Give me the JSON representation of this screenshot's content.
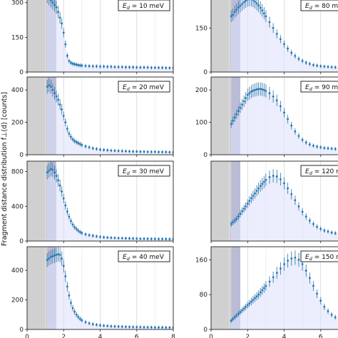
{
  "figure": {
    "ylabel": "Fragment distance distribution f⊥(d) [counts]"
  },
  "chart_data": [
    {
      "type": "scatter",
      "legend": "E_d = 10 meV",
      "xlim": [
        0,
        8
      ],
      "ylim": [
        0,
        330
      ],
      "yticks": [
        0,
        150,
        300
      ],
      "xticks": [
        0,
        2,
        4,
        6,
        8
      ],
      "x": [
        1.1,
        1.2,
        1.3,
        1.4,
        1.5,
        1.6,
        1.7,
        1.8,
        1.9,
        2.0,
        2.1,
        2.2,
        2.3,
        2.4,
        2.5,
        2.6,
        2.7,
        2.8,
        2.9,
        3.0,
        3.2,
        3.4,
        3.6,
        3.8,
        4.0,
        4.2,
        4.4,
        4.6,
        4.8,
        5.0,
        5.2,
        5.4,
        5.6,
        5.8,
        6.0,
        6.2,
        6.4,
        6.6,
        6.8,
        7.0,
        7.2,
        7.4,
        7.6,
        7.8,
        8.0
      ],
      "y": [
        330,
        320,
        310,
        300,
        290,
        280,
        260,
        235,
        210,
        170,
        120,
        70,
        48,
        40,
        36,
        34,
        32,
        30,
        29,
        28,
        27,
        26,
        25,
        25,
        24,
        24,
        23,
        23,
        22,
        22,
        22,
        21,
        21,
        21,
        20,
        20,
        20,
        20,
        19,
        19,
        19,
        19,
        18,
        18,
        18
      ]
    },
    {
      "type": "scatter",
      "legend": "E_d = 80 meV",
      "xlim": [
        0,
        8
      ],
      "ylim": [
        0,
        260
      ],
      "yticks": [
        0,
        150
      ],
      "xticks": [
        0,
        2,
        4,
        6,
        8
      ],
      "x": [
        1.1,
        1.2,
        1.3,
        1.4,
        1.5,
        1.6,
        1.7,
        1.8,
        1.9,
        2.0,
        2.1,
        2.2,
        2.3,
        2.4,
        2.5,
        2.6,
        2.7,
        2.8,
        2.9,
        3.0,
        3.2,
        3.4,
        3.6,
        3.8,
        4.0,
        4.2,
        4.4,
        4.6,
        4.8,
        5.0,
        5.2,
        5.4,
        5.6,
        5.8,
        6.0,
        6.2,
        6.4,
        6.6,
        6.8,
        7.0,
        7.2,
        7.4,
        7.6,
        7.8,
        8.0
      ],
      "y": [
        190,
        195,
        205,
        212,
        220,
        226,
        232,
        238,
        243,
        247,
        249,
        248,
        245,
        240,
        234,
        227,
        219,
        210,
        200,
        190,
        170,
        150,
        130,
        112,
        95,
        80,
        66,
        55,
        45,
        38,
        32,
        28,
        24,
        22,
        20,
        19,
        18,
        17,
        16,
        16,
        15,
        15,
        15,
        14,
        14
      ]
    },
    {
      "type": "scatter",
      "legend": "E_d = 20 meV",
      "xlim": [
        0,
        8
      ],
      "ylim": [
        0,
        480
      ],
      "yticks": [
        0,
        200,
        400
      ],
      "xticks": [
        0,
        2,
        4,
        6,
        8
      ],
      "x": [
        1.1,
        1.2,
        1.3,
        1.4,
        1.5,
        1.6,
        1.7,
        1.8,
        1.9,
        2.0,
        2.1,
        2.2,
        2.3,
        2.4,
        2.5,
        2.6,
        2.7,
        2.8,
        2.9,
        3.0,
        3.2,
        3.4,
        3.6,
        3.8,
        4.0,
        4.2,
        4.4,
        4.6,
        4.8,
        5.0,
        5.2,
        5.4,
        5.6,
        5.8,
        6.0,
        6.2,
        6.4,
        6.6,
        6.8,
        7.0,
        7.2,
        7.4,
        7.6,
        7.8,
        8.0
      ],
      "y": [
        420,
        430,
        420,
        400,
        380,
        360,
        340,
        310,
        280,
        240,
        200,
        160,
        130,
        110,
        95,
        85,
        78,
        72,
        66,
        60,
        52,
        46,
        40,
        36,
        32,
        30,
        28,
        26,
        25,
        24,
        23,
        22,
        21,
        20,
        20,
        19,
        19,
        18,
        18,
        18,
        17,
        17,
        17,
        16,
        16
      ]
    },
    {
      "type": "scatter",
      "legend": "E_d = 90 meV",
      "xlim": [
        0,
        8
      ],
      "ylim": [
        0,
        240
      ],
      "yticks": [
        0,
        100,
        200
      ],
      "xticks": [
        0,
        2,
        4,
        6,
        8
      ],
      "x": [
        1.1,
        1.2,
        1.3,
        1.4,
        1.5,
        1.6,
        1.7,
        1.8,
        1.9,
        2.0,
        2.1,
        2.2,
        2.3,
        2.4,
        2.5,
        2.6,
        2.7,
        2.8,
        2.9,
        3.0,
        3.2,
        3.4,
        3.6,
        3.8,
        4.0,
        4.2,
        4.4,
        4.6,
        4.8,
        5.0,
        5.2,
        5.4,
        5.6,
        5.8,
        6.0,
        6.2,
        6.4,
        6.6,
        6.8,
        7.0,
        7.2,
        7.4,
        7.6,
        7.8,
        8.0
      ],
      "y": [
        95,
        105,
        115,
        125,
        135,
        145,
        155,
        165,
        175,
        185,
        190,
        195,
        198,
        200,
        202,
        203,
        203,
        202,
        200,
        197,
        190,
        180,
        168,
        150,
        130,
        110,
        90,
        72,
        58,
        46,
        38,
        32,
        28,
        25,
        23,
        21,
        20,
        19,
        18,
        17,
        17,
        16,
        16,
        15,
        15
      ]
    },
    {
      "type": "scatter",
      "legend": "E_d = 30 meV",
      "xlim": [
        0,
        8
      ],
      "ylim": [
        0,
        920
      ],
      "yticks": [
        0,
        400,
        800
      ],
      "xticks": [
        0,
        2,
        4,
        6,
        8
      ],
      "x": [
        1.1,
        1.2,
        1.3,
        1.4,
        1.5,
        1.6,
        1.7,
        1.8,
        1.9,
        2.0,
        2.1,
        2.2,
        2.3,
        2.4,
        2.5,
        2.6,
        2.7,
        2.8,
        2.9,
        3.0,
        3.2,
        3.4,
        3.6,
        3.8,
        4.0,
        4.2,
        4.4,
        4.6,
        4.8,
        5.0,
        5.2,
        5.4,
        5.6,
        5.8,
        6.0,
        6.2,
        6.4,
        6.6,
        6.8,
        7.0,
        7.2,
        7.4,
        7.6,
        7.8,
        8.0
      ],
      "y": [
        790,
        810,
        830,
        820,
        790,
        750,
        700,
        640,
        570,
        490,
        410,
        340,
        280,
        230,
        190,
        160,
        140,
        120,
        105,
        92,
        78,
        68,
        60,
        54,
        48,
        44,
        41,
        38,
        36,
        34,
        33,
        32,
        30,
        29,
        28,
        27,
        27,
        26,
        25,
        25,
        24,
        24,
        23,
        23,
        22
      ]
    },
    {
      "type": "scatter",
      "legend": "E_d = 120 meV",
      "xlim": [
        0,
        8
      ],
      "ylim": [
        0,
        235
      ],
      "yticks": [],
      "xticks": [
        0,
        2,
        4,
        6,
        8
      ],
      "x": [
        1.1,
        1.2,
        1.3,
        1.4,
        1.5,
        1.6,
        1.7,
        1.8,
        1.9,
        2.0,
        2.1,
        2.2,
        2.3,
        2.4,
        2.5,
        2.6,
        2.7,
        2.8,
        2.9,
        3.0,
        3.2,
        3.4,
        3.6,
        3.8,
        4.0,
        4.2,
        4.4,
        4.6,
        4.8,
        5.0,
        5.2,
        5.4,
        5.6,
        5.8,
        6.0,
        6.2,
        6.4,
        6.6,
        6.8,
        7.0,
        7.2,
        7.4,
        7.6,
        7.8,
        8.0
      ],
      "y": [
        50,
        55,
        60,
        65,
        72,
        80,
        88,
        95,
        102,
        110,
        118,
        126,
        133,
        140,
        148,
        155,
        162,
        168,
        174,
        180,
        188,
        192,
        190,
        182,
        170,
        155,
        138,
        120,
        102,
        86,
        72,
        60,
        50,
        42,
        36,
        31,
        28,
        25,
        23,
        22,
        21,
        20,
        19,
        19,
        18
      ]
    },
    {
      "type": "scatter",
      "legend": "E_d = 40 meV",
      "xlim": [
        0,
        8
      ],
      "ylim": [
        0,
        560
      ],
      "yticks": [
        0,
        200,
        400
      ],
      "xticks": [
        0,
        2,
        4,
        6,
        8
      ],
      "x": [
        1.1,
        1.2,
        1.3,
        1.4,
        1.5,
        1.6,
        1.7,
        1.8,
        1.9,
        2.0,
        2.1,
        2.2,
        2.3,
        2.4,
        2.5,
        2.6,
        2.7,
        2.8,
        2.9,
        3.0,
        3.2,
        3.4,
        3.6,
        3.8,
        4.0,
        4.2,
        4.4,
        4.6,
        4.8,
        5.0,
        5.2,
        5.4,
        5.6,
        5.8,
        6.0,
        6.2,
        6.4,
        6.6,
        6.8,
        7.0,
        7.2,
        7.4,
        7.6,
        7.8,
        8.0
      ],
      "y": [
        470,
        480,
        490,
        495,
        500,
        505,
        510,
        505,
        480,
        430,
        360,
        290,
        230,
        180,
        145,
        120,
        100,
        85,
        72,
        62,
        50,
        42,
        36,
        32,
        28,
        26,
        24,
        22,
        21,
        20,
        19,
        18,
        17,
        17,
        16,
        16,
        15,
        15,
        15,
        14,
        14,
        14,
        13,
        13,
        13
      ]
    },
    {
      "type": "scatter",
      "legend": "E_d = 150 meV",
      "xlim": [
        0,
        8
      ],
      "ylim": [
        0,
        190
      ],
      "yticks": [
        0,
        80,
        160
      ],
      "xticks": [
        0,
        2,
        4,
        6,
        8
      ],
      "x": [
        1.1,
        1.2,
        1.3,
        1.4,
        1.5,
        1.6,
        1.7,
        1.8,
        1.9,
        2.0,
        2.1,
        2.2,
        2.3,
        2.4,
        2.5,
        2.6,
        2.7,
        2.8,
        2.9,
        3.0,
        3.2,
        3.4,
        3.6,
        3.8,
        4.0,
        4.2,
        4.4,
        4.6,
        4.8,
        5.0,
        5.2,
        5.4,
        5.6,
        5.8,
        6.0,
        6.2,
        6.4,
        6.6,
        6.8,
        7.0,
        7.2,
        7.4,
        7.6,
        7.8,
        8.0
      ],
      "y": [
        20,
        24,
        28,
        32,
        36,
        40,
        44,
        48,
        52,
        56,
        60,
        64,
        68,
        72,
        76,
        80,
        85,
        90,
        95,
        100,
        110,
        120,
        130,
        140,
        150,
        158,
        163,
        165,
        160,
        150,
        135,
        118,
        100,
        82,
        66,
        52,
        42,
        34,
        28,
        24,
        20,
        18,
        16,
        15,
        14
      ]
    }
  ]
}
